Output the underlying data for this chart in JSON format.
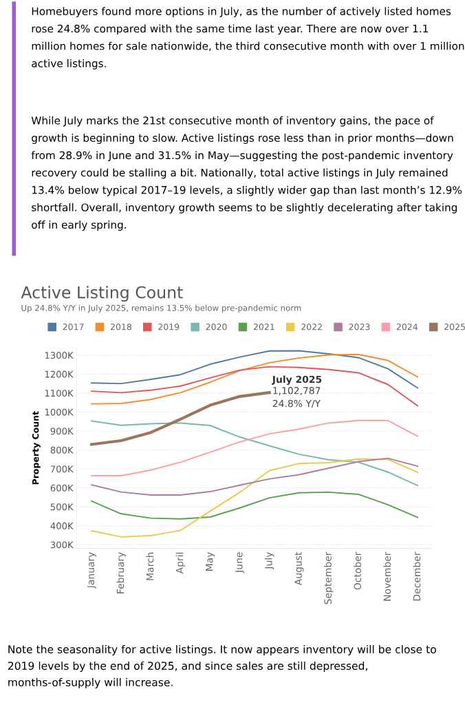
{
  "chart_data": {
    "type": "line",
    "title": "Active Listing Count",
    "subtitle": "Up 24.8% Y/Y in July 2025, remains 13.5% below pre-pandemic norm",
    "ylabel": "Property Count",
    "categories": [
      "January",
      "February",
      "March",
      "April",
      "May",
      "June",
      "July",
      "August",
      "September",
      "October",
      "November",
      "December"
    ],
    "series": [
      {
        "name": "2017",
        "color": "#4e79a7",
        "values": [
          1153,
          1150,
          1172,
          1197,
          1252,
          1290,
          1322,
          1323,
          1307,
          1287,
          1228,
          1127
        ]
      },
      {
        "name": "2018",
        "color": "#f28e2b",
        "values": [
          1043,
          1045,
          1066,
          1102,
          1157,
          1218,
          1260,
          1285,
          1301,
          1304,
          1272,
          1185
        ]
      },
      {
        "name": "2019",
        "color": "#e15759",
        "values": [
          1110,
          1102,
          1115,
          1137,
          1180,
          1221,
          1239,
          1235,
          1224,
          1207,
          1145,
          1033
        ]
      },
      {
        "name": "2020",
        "color": "#76b7b2",
        "values": [
          953,
          930,
          938,
          942,
          929,
          868,
          822,
          777,
          748,
          735,
          683,
          612
        ]
      },
      {
        "name": "2021",
        "color": "#59a14f",
        "values": [
          530,
          463,
          440,
          436,
          446,
          494,
          547,
          574,
          577,
          566,
          511,
          444
        ]
      },
      {
        "name": "2022",
        "color": "#edc948",
        "values": [
          373,
          341,
          348,
          375,
          477,
          576,
          691,
          728,
          733,
          752,
          750,
          682
        ]
      },
      {
        "name": "2023",
        "color": "#b07aa1",
        "values": [
          616,
          578,
          562,
          562,
          580,
          614,
          647,
          669,
          704,
          738,
          756,
          714
        ]
      },
      {
        "name": "2024",
        "color": "#ff9da7",
        "values": [
          664,
          664,
          694,
          735,
          788,
          842,
          885,
          910,
          942,
          955,
          955,
          872
        ]
      },
      {
        "name": "2025",
        "color": "#9c755f",
        "values": [
          829,
          849,
          892,
          962,
          1036,
          1082,
          1102.787,
          null,
          null,
          null,
          null,
          null
        ]
      }
    ],
    "ylim": [
      280,
      1340
    ],
    "yticks": [
      {
        "value": 300,
        "label": "300K"
      },
      {
        "value": 400,
        "label": "400K"
      },
      {
        "value": 500,
        "label": "500K"
      },
      {
        "value": 600,
        "label": "600K"
      },
      {
        "value": 700,
        "label": "700K"
      },
      {
        "value": 800,
        "label": "800K"
      },
      {
        "value": 900,
        "label": "900K"
      },
      {
        "value": 1000,
        "label": "1000K"
      },
      {
        "value": 1100,
        "label": "1100K"
      },
      {
        "value": 1200,
        "label": "1200K"
      },
      {
        "value": 1300,
        "label": "1300K"
      }
    ],
    "grid": "y",
    "legend": "top",
    "marker": "none",
    "line_style": "solid",
    "annotations": [
      "Homebuyers found more options in July, as the number of actively listed homes rose 24.8% compared with the same time last year. There are now over 1.1 million homes for sale nationwide, the third consecutive month with over 1 million active listings.",
      "While July marks the 21st consecutive month of inventory gains, the pace of growth is beginning to slow. Active listings rose less than in prior months—down from 28.9% in June and 31.5% in May—suggesting the post-pandemic inventory recovery could be stalling a bit. Nationally, total active listings in July remained 13.4% below typical 2017–19 levels, a slightly wider gap than last month’s 12.9% shortfall. Overall, inventory growth seems to be slightly decelerating after taking off in early spring.",
      {
        "text": "July 2025\n1,102,787\n24.8% Y/Y",
        "x": "July",
        "y": 1102.787
      },
      "Note the seasonality for active listings. It now appears inventory will be close to 2019 levels by the end of 2025, and since sales are still depressed, months-of-supply will increase."
    ]
  }
}
